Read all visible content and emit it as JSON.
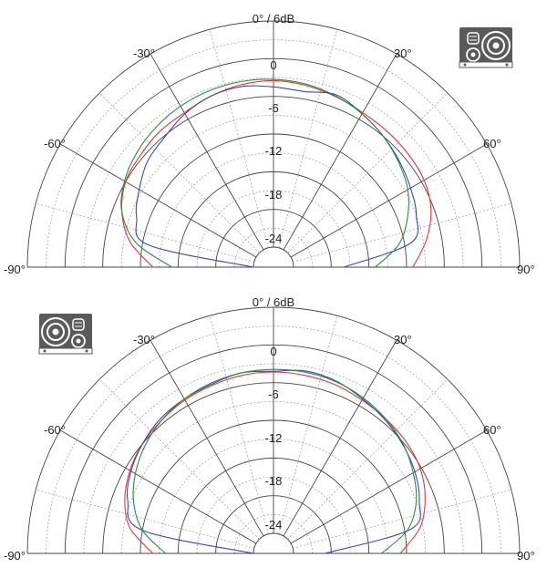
{
  "colors": {
    "grid_major": "#444444",
    "grid_minor": "#999999",
    "red": "#e8343a",
    "blue": "#3b47b8",
    "green": "#2e8b3c",
    "icon_bg": "#5a5a5a"
  },
  "charts": [
    {
      "top_label": "0° / 6dB",
      "zero_label": "0",
      "angle_labels": [
        "-90°",
        "-60°",
        "-30°",
        "30°",
        "60°",
        "90°"
      ],
      "db_labels": [
        "-6",
        "-12",
        "-18",
        "-24"
      ],
      "icon": "speaker-icon-tweeter-left"
    },
    {
      "top_label": "0° / 6dB",
      "zero_label": "0",
      "angle_labels": [
        "-90°",
        "-60°",
        "-30°",
        "30°",
        "60°",
        "90°"
      ],
      "db_labels": [
        "-6",
        "-12",
        "-18",
        "-24"
      ],
      "icon": "speaker-icon-tweeter-right"
    }
  ],
  "chart_data": [
    {
      "type": "polar-half",
      "angle_range": [
        -90,
        90
      ],
      "r_range_db": [
        -30,
        6
      ],
      "r_ticks_db": [
        0,
        -6,
        -12,
        -18,
        -24
      ],
      "series": [
        {
          "color": "red",
          "angles": [
            -90,
            -80,
            -70,
            -60,
            -50,
            -40,
            -30,
            -20,
            -10,
            0,
            10,
            20,
            30,
            40,
            50,
            60,
            70,
            80,
            90
          ],
          "db": [
            -14,
            -10,
            -7.5,
            -6,
            -5.5,
            -5,
            -4.8,
            -4.2,
            -3.7,
            -3.5,
            -3.8,
            -4.3,
            -4.8,
            -5,
            -5.2,
            -5.5,
            -6.5,
            -8.5,
            -11
          ]
        },
        {
          "color": "blue",
          "angles": [
            -90,
            -80,
            -70,
            -60,
            -50,
            -40,
            -30,
            -20,
            -10,
            0,
            10,
            20,
            30,
            40,
            50,
            60,
            70,
            80,
            90
          ],
          "db": [
            -30,
            -13,
            -10,
            -8.5,
            -7,
            -6.2,
            -5,
            -4.2,
            -4,
            -4.5,
            -4.8,
            -4,
            -5,
            -6,
            -7,
            -8,
            -9,
            -11,
            -22
          ]
        },
        {
          "color": "green",
          "angles": [
            -90,
            -80,
            -70,
            -60,
            -50,
            -40,
            -30,
            -20,
            -10,
            0,
            10,
            20,
            30,
            40,
            50,
            60,
            70,
            80,
            90
          ],
          "db": [
            -17,
            -11,
            -7.5,
            -5.8,
            -4.8,
            -4.1,
            -3.6,
            -3.3,
            -3.2,
            -3.3,
            -3.6,
            -4.2,
            -5,
            -6,
            -7.2,
            -8.5,
            -10.5,
            -13,
            -17
          ]
        }
      ]
    },
    {
      "type": "polar-half",
      "angle_range": [
        -90,
        90
      ],
      "r_range_db": [
        -30,
        6
      ],
      "r_ticks_db": [
        0,
        -6,
        -12,
        -18,
        -24
      ],
      "series": [
        {
          "color": "red",
          "angles": [
            -90,
            -80,
            -70,
            -60,
            -50,
            -40,
            -30,
            -20,
            -10,
            0,
            10,
            20,
            30,
            40,
            50,
            60,
            70,
            80,
            90
          ],
          "db": [
            -14,
            -10,
            -8,
            -6.8,
            -6,
            -5.5,
            -5,
            -4.7,
            -4.4,
            -4.3,
            -4.4,
            -4.6,
            -5,
            -5.3,
            -5.6,
            -6.2,
            -7.5,
            -9.5,
            -13
          ]
        },
        {
          "color": "blue",
          "angles": [
            -90,
            -80,
            -70,
            -60,
            -50,
            -40,
            -30,
            -20,
            -10,
            0,
            10,
            20,
            30,
            40,
            50,
            60,
            70,
            80,
            90
          ],
          "db": [
            -30,
            -12,
            -8.5,
            -7,
            -6,
            -5.2,
            -4.8,
            -4.5,
            -4,
            -4.2,
            -3.7,
            -4,
            -4.8,
            -5.5,
            -6.3,
            -7.2,
            -8.5,
            -11,
            -25
          ]
        },
        {
          "color": "green",
          "angles": [
            -90,
            -80,
            -70,
            -60,
            -50,
            -40,
            -30,
            -20,
            -10,
            0,
            10,
            20,
            30,
            40,
            50,
            60,
            70,
            80,
            90
          ],
          "db": [
            -16,
            -12,
            -9.5,
            -7.8,
            -6.5,
            -5.5,
            -4.8,
            -4.3,
            -4,
            -3.9,
            -3.9,
            -4.1,
            -4.6,
            -5.3,
            -6.2,
            -7.5,
            -9,
            -11.5,
            -16
          ]
        }
      ]
    }
  ]
}
